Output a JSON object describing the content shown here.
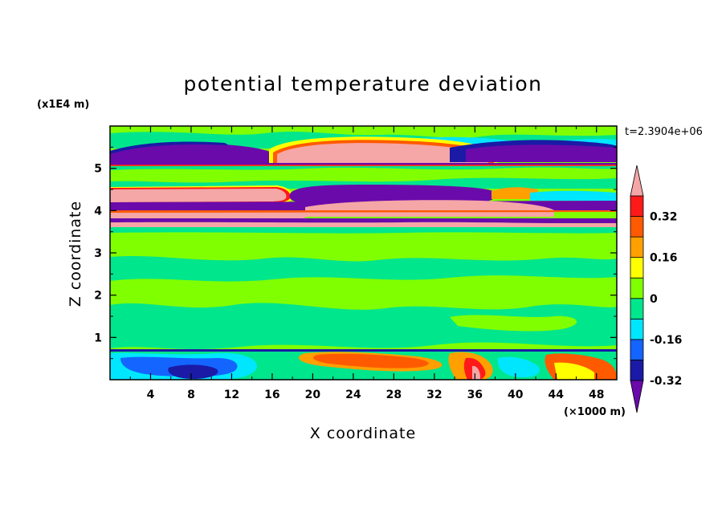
{
  "chart_data": {
    "type": "heatmap",
    "title": "potential temperature deviation",
    "xlabel": "X coordinate",
    "ylabel": "Z coordinate",
    "x_unit_label": "(×1000 m)",
    "y_unit_label": "(x1E4 m)",
    "time_label": "t=2.3904e+06",
    "xlim": [
      0,
      50
    ],
    "ylim": [
      0,
      6
    ],
    "x_ticks": [
      4,
      8,
      12,
      16,
      20,
      24,
      28,
      32,
      36,
      40,
      44,
      48
    ],
    "y_ticks": [
      1,
      2,
      3,
      4,
      5
    ],
    "colorbar": {
      "levels": [
        -0.4,
        -0.32,
        -0.24,
        -0.16,
        -0.08,
        0,
        0.08,
        0.16,
        0.24,
        0.32,
        0.4
      ],
      "labeled_levels": [
        "0.32",
        "0.16",
        "0",
        "-0.16",
        "-0.32"
      ],
      "colors_low_to_high": [
        "#6a0aab",
        "#1a1aa6",
        "#1464ff",
        "#00e6ff",
        "#00e68c",
        "#80ff00",
        "#ffff00",
        "#ffa000",
        "#ff5a00",
        "#ff1a1a",
        "#f5a6a6"
      ],
      "under_color": "#6a0aab",
      "over_color": "#f5a6a6"
    },
    "bands": [
      {
        "z": [
          5.5,
          6.0
        ],
        "value": 0.0
      },
      {
        "z": [
          5.15,
          5.5
        ],
        "value": -0.45,
        "note": "purple west, pink 18–37, purple 40–50"
      },
      {
        "z": [
          4.95,
          5.15
        ],
        "value": 0.05
      },
      {
        "z": [
          4.45,
          4.95
        ],
        "value": 0.05
      },
      {
        "z": [
          4.05,
          4.5
        ],
        "value": 0.45,
        "note": "pink west 0–20, purple 20–37"
      },
      {
        "z": [
          3.65,
          4.05
        ],
        "value": -0.45,
        "note": "alternating purple / pink layers"
      },
      {
        "z": [
          0.7,
          3.65
        ],
        "value": 0.04,
        "note": "green / light green"
      },
      {
        "z": [
          0.0,
          0.7
        ],
        "value": -0.2,
        "note": "mixed blue west, red/orange east"
      }
    ]
  }
}
